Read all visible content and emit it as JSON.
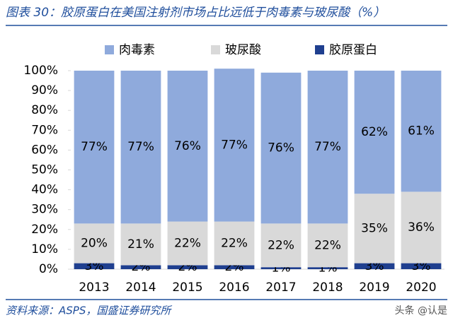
{
  "chart_data": {
    "type": "bar",
    "title": "图表 30：胶原蛋白在美国注射剂市场占比远低于肉毒素与玻尿酸（%）",
    "source": "资料来源：ASPS，国盛证券研究所",
    "watermark": "头条 @认是",
    "categories": [
      "2013",
      "2014",
      "2015",
      "2016",
      "2017",
      "2018",
      "2019",
      "2020"
    ],
    "series": [
      {
        "name": "肉毒素",
        "color": "#8faadc",
        "values": [
          77,
          77,
          76,
          77,
          76,
          77,
          62,
          61
        ],
        "value_labels": [
          "77%",
          "77%",
          "76%",
          "77%",
          "76%",
          "77%",
          "62%",
          "61%"
        ]
      },
      {
        "name": "玻尿酸",
        "color": "#d9d9d9",
        "values": [
          20,
          21,
          22,
          22,
          22,
          22,
          35,
          36
        ],
        "value_labels": [
          "20%",
          "21%",
          "22%",
          "22%",
          "22%",
          "22%",
          "35%",
          "36%"
        ]
      },
      {
        "name": "胶原蛋白",
        "color": "#1f3f8f",
        "values": [
          3,
          2,
          2,
          2,
          1,
          1,
          3,
          3
        ],
        "value_labels": [
          "3%",
          "2%",
          "2%",
          "2%",
          "1%",
          "1%",
          "3%",
          "3%"
        ]
      }
    ],
    "ylim": [
      0,
      100
    ],
    "yticks": [
      {
        "value": 0,
        "label": "0%"
      },
      {
        "value": 10,
        "label": "10%"
      },
      {
        "value": 20,
        "label": "20%"
      },
      {
        "value": 30,
        "label": "30%"
      },
      {
        "value": 40,
        "label": "40%"
      },
      {
        "value": 50,
        "label": "50%"
      },
      {
        "value": 60,
        "label": "60%"
      },
      {
        "value": 70,
        "label": "70%"
      },
      {
        "value": 80,
        "label": "80%"
      },
      {
        "value": 90,
        "label": "90%"
      },
      {
        "value": 100,
        "label": "100%"
      }
    ],
    "legend": "top"
  }
}
